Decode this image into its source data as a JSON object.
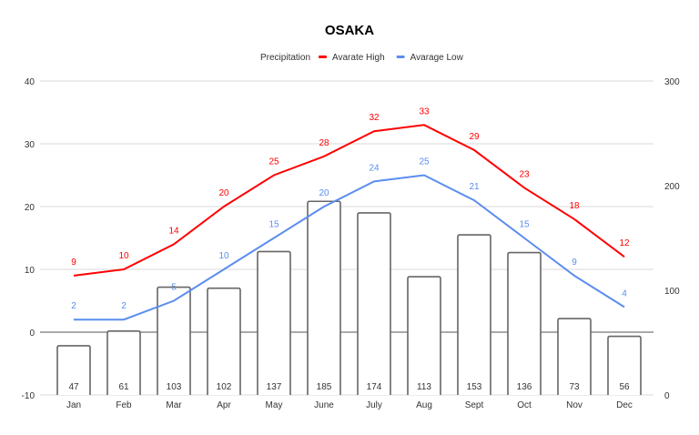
{
  "chart_data": {
    "type": "combo",
    "title": "OSAKA",
    "categories": [
      "Jan",
      "Feb",
      "Mar",
      "Apr",
      "May",
      "June",
      "July",
      "Aug",
      "Sept",
      "Oct",
      "Nov",
      "Dec"
    ],
    "series": [
      {
        "name": "Precipitation",
        "type": "bar",
        "axis": "right",
        "color": "#ffffff",
        "stroke": "#666666",
        "values": [
          47,
          61,
          103,
          102,
          137,
          185,
          174,
          113,
          153,
          136,
          73,
          56
        ]
      },
      {
        "name": "Avarate High",
        "type": "line",
        "axis": "left",
        "color": "#ff0000",
        "values": [
          9,
          10,
          14,
          20,
          25,
          28,
          32,
          33,
          29,
          23,
          18,
          12
        ]
      },
      {
        "name": "Avarage Low",
        "type": "line",
        "axis": "left",
        "color": "#5b8def",
        "values": [
          2,
          2,
          5,
          10,
          15,
          20,
          24,
          25,
          21,
          15,
          9,
          4
        ]
      }
    ],
    "left_axis": {
      "ylim": [
        -10,
        40
      ],
      "ticks": [
        -10,
        0,
        10,
        20,
        30,
        40
      ]
    },
    "right_axis": {
      "ylim": [
        0,
        300
      ],
      "ticks": [
        0,
        100,
        200,
        300
      ]
    },
    "grid": true,
    "legend": "top"
  }
}
